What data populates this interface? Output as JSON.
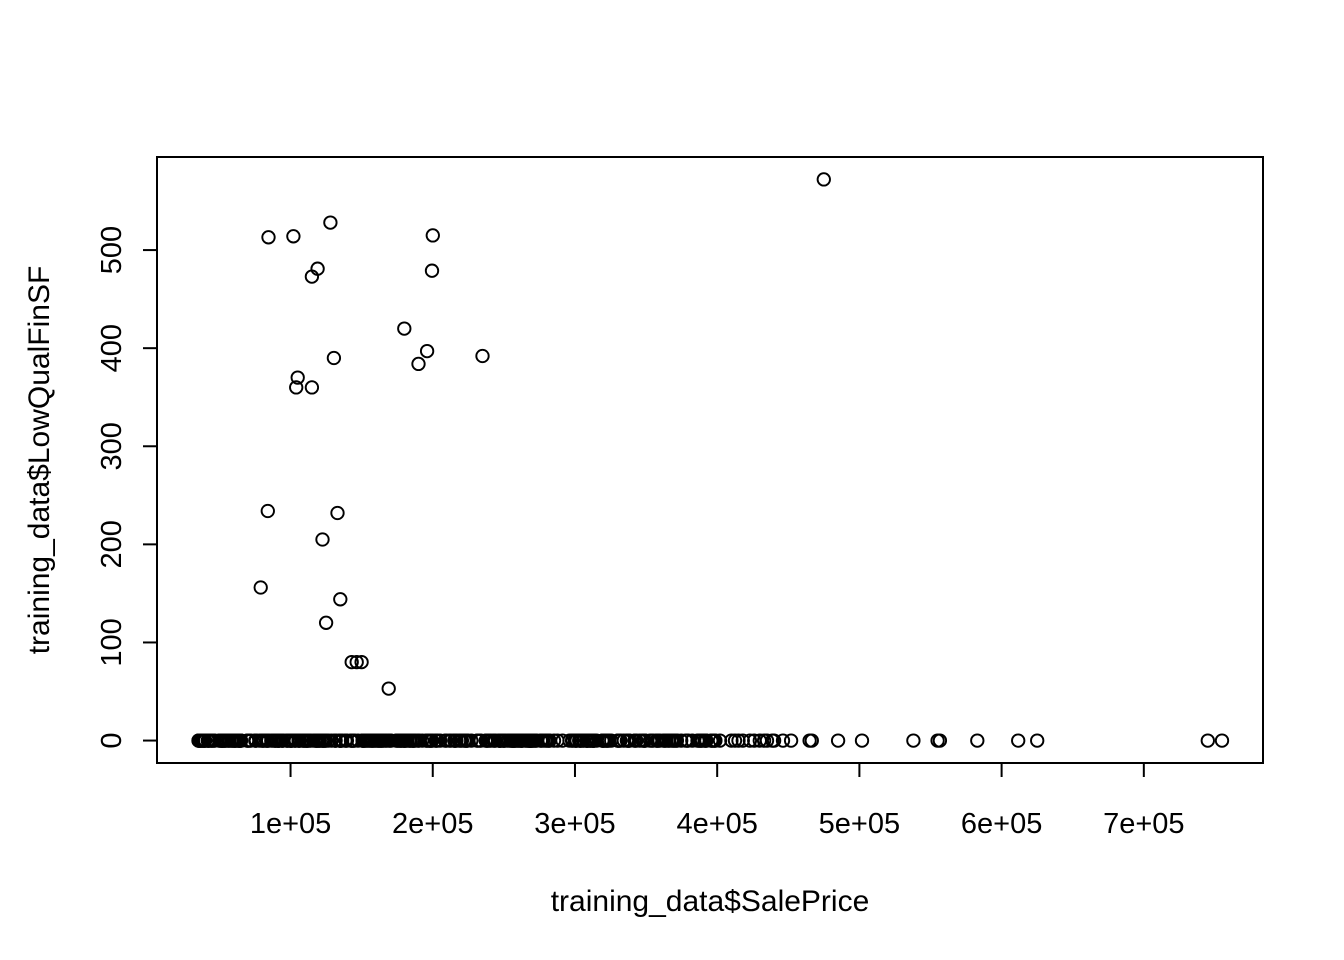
{
  "chart_data": {
    "type": "scatter",
    "title": "",
    "xlabel": "training_data$SalePrice",
    "ylabel": "training_data$LowQualFinSF",
    "xlim": [
      34900,
      755000
    ],
    "ylim": [
      0,
      572
    ],
    "x_ticks": [
      100000,
      200000,
      300000,
      400000,
      500000,
      600000,
      700000
    ],
    "x_tick_labels": [
      "1e+05",
      "2e+05",
      "3e+05",
      "4e+05",
      "5e+05",
      "6e+05",
      "7e+05"
    ],
    "y_ticks": [
      0,
      100,
      200,
      300,
      400,
      500
    ],
    "y_tick_labels": [
      "0",
      "100",
      "200",
      "300",
      "400",
      "500"
    ],
    "grid": false,
    "legend": "none",
    "marker": "open-circle",
    "point_color": "#000000",
    "points": [
      [
        475000,
        572
      ],
      [
        128000,
        528
      ],
      [
        84500,
        513
      ],
      [
        102000,
        514
      ],
      [
        200000,
        515
      ],
      [
        119000,
        481
      ],
      [
        199500,
        479
      ],
      [
        115000,
        473
      ],
      [
        180000,
        420
      ],
      [
        196000,
        397
      ],
      [
        235000,
        392
      ],
      [
        130500,
        390
      ],
      [
        190000,
        384
      ],
      [
        105000,
        370
      ],
      [
        104000,
        360
      ],
      [
        115000,
        360
      ],
      [
        84000,
        234
      ],
      [
        133000,
        232
      ],
      [
        122500,
        205
      ],
      [
        79000,
        156
      ],
      [
        135000,
        144
      ],
      [
        125000,
        120
      ],
      [
        143000,
        80
      ],
      [
        146500,
        80
      ],
      [
        150000,
        80
      ],
      [
        169000,
        53
      ]
    ],
    "zero_x_range": [
      34900,
      400000
    ],
    "zero_extra_x": [
      402000,
      410000,
      412500,
      415000,
      418000,
      423000,
      426000,
      430000,
      433000,
      435000,
      438780,
      440000,
      446261,
      451950,
      465000,
      466500,
      485000,
      501837,
      538000,
      555000,
      556581,
      582933,
      611657,
      625000,
      745000,
      755000
    ]
  }
}
